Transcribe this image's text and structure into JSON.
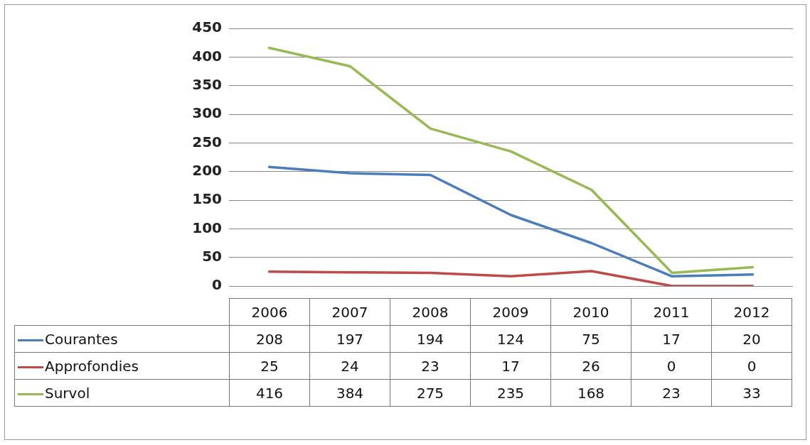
{
  "chart_data": {
    "type": "line",
    "categories": [
      "2006",
      "2007",
      "2008",
      "2009",
      "2010",
      "2011",
      "2012"
    ],
    "series": [
      {
        "name": "Courantes",
        "color": "#4a7ebb",
        "values": [
          208,
          197,
          194,
          124,
          75,
          17,
          20
        ]
      },
      {
        "name": "Approfondies",
        "color": "#be4b48",
        "values": [
          25,
          24,
          23,
          17,
          26,
          0,
          0
        ]
      },
      {
        "name": "Survol",
        "color": "#98b954",
        "values": [
          416,
          384,
          275,
          235,
          168,
          23,
          33
        ]
      }
    ],
    "ylim": [
      0,
      450
    ],
    "yticks": [
      0,
      50,
      100,
      150,
      200,
      250,
      300,
      350,
      400,
      450
    ],
    "grid": "y",
    "legend": "bottom",
    "data_labels": true,
    "marker": "none",
    "line_style": "solid"
  }
}
